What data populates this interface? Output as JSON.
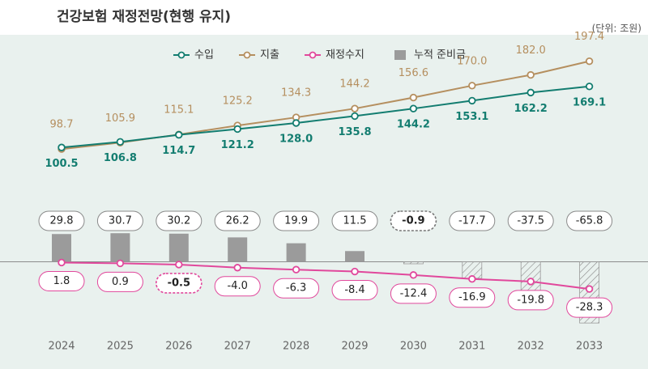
{
  "header": {
    "title": "건강보험 재정전망(현행 유지)",
    "unit": "(단위: 조원)"
  },
  "colors": {
    "background": "#e9f1ee",
    "revenue": "#137d70",
    "expenditure": "#b58f5f",
    "balance": "#e1489c",
    "reserve": "#9b9b9b"
  },
  "chart_data": {
    "type": "line",
    "title": "건강보험 재정전망(현행 유지)",
    "unit": "(단위: 조원)",
    "categories": [
      "2024",
      "2025",
      "2026",
      "2027",
      "2028",
      "2029",
      "2030",
      "2031",
      "2032",
      "2033"
    ],
    "series": [
      {
        "name": "수입",
        "type": "line",
        "values": [
          100.5,
          106.8,
          114.7,
          121.2,
          128.0,
          135.8,
          144.2,
          153.1,
          162.2,
          169.1
        ]
      },
      {
        "name": "지출",
        "type": "line",
        "values": [
          98.7,
          105.9,
          115.1,
          125.2,
          134.3,
          144.2,
          156.6,
          170.0,
          182.0,
          197.4
        ]
      },
      {
        "name": "재정수지",
        "type": "line",
        "values": [
          1.8,
          0.9,
          -0.5,
          -4.0,
          -6.3,
          -8.4,
          -12.4,
          -16.9,
          -19.8,
          -28.3
        ]
      },
      {
        "name": "누적 준비금",
        "type": "bar",
        "values": [
          29.8,
          30.7,
          30.2,
          26.2,
          19.9,
          11.5,
          -0.9,
          -17.7,
          -37.5,
          -65.8
        ]
      }
    ],
    "legend": [
      "수입",
      "지출",
      "재정수지",
      "누적 준비금"
    ],
    "legend_position": "top-center"
  }
}
